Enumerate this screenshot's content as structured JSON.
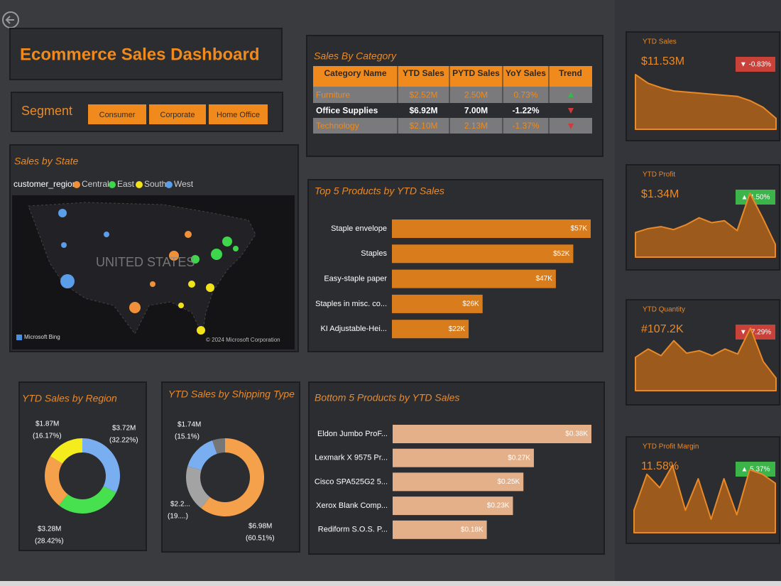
{
  "header": {
    "title": "Ecommerce Sales Dashboard"
  },
  "segment": {
    "label": "Segment",
    "options": [
      "Consumer",
      "Corporate",
      "Home Office"
    ]
  },
  "category_table": {
    "title": "Sales By Category",
    "columns": [
      "Category Name",
      "YTD Sales",
      "PYTD Sales",
      "YoY Sales",
      "Trend"
    ],
    "rows": [
      [
        "Furniture",
        "$2.52M",
        "2.50M",
        "0.73%"
      ],
      [
        "Office Supplies",
        "$6.92M",
        "7.00M",
        "-1.22%"
      ],
      [
        "Technology",
        "$2.10M",
        "2.13M",
        "-1.37%"
      ]
    ]
  },
  "map": {
    "title": "Sales by State",
    "legend_title": "customer_region",
    "legend": [
      {
        "name": "Central",
        "color": "#f0913a"
      },
      {
        "name": "East",
        "color": "#3ed64a"
      },
      {
        "name": "South",
        "color": "#f2e21a"
      },
      {
        "name": "West",
        "color": "#5b9ee8"
      }
    ],
    "label": "UNITED STATES",
    "credit": "Microsoft Bing",
    "copyright": "© 2024 Microsoft Corporation"
  },
  "kpis": [
    {
      "title": "YTD Sales",
      "value": "$11.53M",
      "change": "▼ -0.83%",
      "badge_color": "#c8423a"
    },
    {
      "title": "YTD Profit",
      "value": "$1.34M",
      "change": "▲ 4.50%",
      "badge_color": "#3bb44a"
    },
    {
      "title": "YTD Quantity",
      "value": "#107.2K",
      "change": "▼ -7.29%",
      "badge_color": "#c8423a"
    },
    {
      "title": "YTD Profit Margin",
      "value": "11.58%",
      "change": "▲ 5.37%",
      "badge_color": "#3bb44a"
    }
  ],
  "chart_data": [
    {
      "type": "bar",
      "title": "Top 5 Products by YTD Sales",
      "categories": [
        "Staple envelope",
        "Staples",
        "Easy-staple paper",
        "Staples in misc. co...",
        "KI Adjustable-Hei..."
      ],
      "values": [
        57,
        52,
        47,
        26,
        22
      ],
      "value_labels": [
        "$57K",
        "$52K",
        "$47K",
        "$26K",
        "$22K"
      ],
      "color": "#d97d1c"
    },
    {
      "type": "bar",
      "title": "Bottom 5 Products by YTD Sales",
      "categories": [
        "Eldon Jumbo ProF...",
        "Lexmark X 9575 Pr...",
        "Cisco SPA525G2 5...",
        "Xerox Blank Comp...",
        "Rediform S.O.S. P..."
      ],
      "values": [
        0.38,
        0.27,
        0.25,
        0.23,
        0.18
      ],
      "value_labels": [
        "$0.38K",
        "$0.27K",
        "$0.25K",
        "$0.23K",
        "$0.18K"
      ],
      "color": "#e3b08a"
    },
    {
      "type": "donut",
      "title": "YTD Sales by Region",
      "values": [
        3.72,
        3.28,
        2.66,
        1.87
      ],
      "value_labels": [
        "$3.72M",
        "$3.28M",
        null,
        "$1.87M"
      ],
      "percent_labels": [
        "(32.22%)",
        "(28.42%)",
        null,
        "(16.17%)"
      ],
      "colors": [
        "#79aef0",
        "#47e04f",
        "#f5a04a",
        "#f4ec1c"
      ]
    },
    {
      "type": "donut",
      "title": "YTD Sales by Shipping Type",
      "values": [
        6.98,
        2.2,
        1.74,
        0.61
      ],
      "value_labels": [
        "$6.98M",
        "$2.2...",
        "$1.74M",
        null
      ],
      "percent_labels": [
        "(60.51%)",
        "(19....)",
        "(15.1%)",
        null
      ],
      "colors": [
        "#f5a04a",
        "#a3a3a3",
        "#79aef0",
        "#777777"
      ]
    },
    {
      "type": "area",
      "values": [
        100,
        92,
        88,
        85,
        84,
        83,
        82,
        81,
        80,
        76,
        70,
        60
      ],
      "color": "#e8892a"
    },
    {
      "type": "area",
      "values": [
        30,
        34,
        36,
        33,
        38,
        45,
        40,
        42,
        32,
        70,
        45,
        18
      ],
      "color": "#e8892a"
    },
    {
      "type": "area",
      "values": [
        40,
        50,
        42,
        60,
        45,
        48,
        42,
        50,
        44,
        75,
        35,
        15
      ],
      "color": "#e8892a"
    },
    {
      "type": "area",
      "values": [
        20,
        60,
        45,
        70,
        20,
        55,
        10,
        55,
        15,
        65,
        60,
        50
      ],
      "color": "#e8892a"
    }
  ]
}
